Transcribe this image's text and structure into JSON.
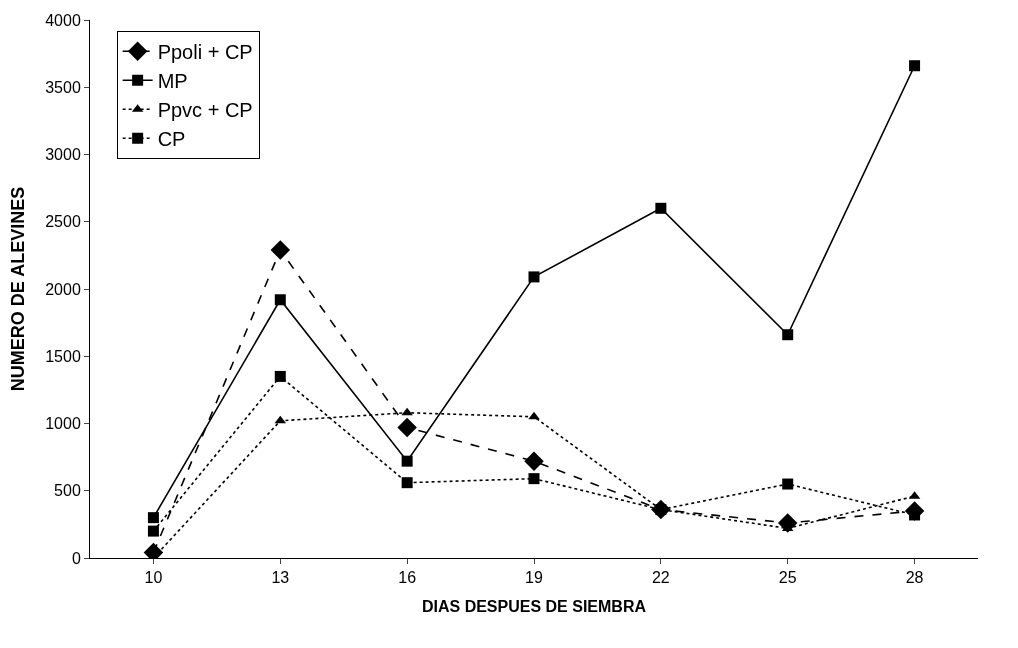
{
  "chart_data": {
    "type": "line",
    "xlabel": "DIAS DESPUES DE SIEMBRA",
    "ylabel": "NUMERO DE ALEVINES",
    "categories": [
      "10",
      "13",
      "16",
      "19",
      "22",
      "25",
      "28"
    ],
    "ylim": [
      0,
      4000
    ],
    "yticks": [
      0,
      500,
      1000,
      1500,
      2000,
      2500,
      3000,
      3500,
      4000
    ],
    "grid": false,
    "legend": "top left",
    "series": [
      {
        "name": "Ppoli + CP",
        "color": "#000000",
        "marker": "diamond",
        "line_style": "dashed",
        "values": [
          40,
          2290,
          970,
          720,
          360,
          260,
          350
        ]
      },
      {
        "name": "MP",
        "color": "#000000",
        "marker": "square",
        "line_style": "solid",
        "values": [
          300,
          1920,
          720,
          2090,
          2600,
          1660,
          3660
        ]
      },
      {
        "name": "Ppvc + CP",
        "color": "#000000",
        "marker": "triangle",
        "line_style": "dotted",
        "values": [
          0,
          1020,
          1080,
          1050,
          360,
          220,
          460
        ]
      },
      {
        "name": "CP",
        "color": "#000000",
        "marker": "square",
        "line_style": "dotted",
        "values": [
          200,
          1350,
          560,
          590,
          360,
          550,
          320
        ]
      }
    ]
  }
}
